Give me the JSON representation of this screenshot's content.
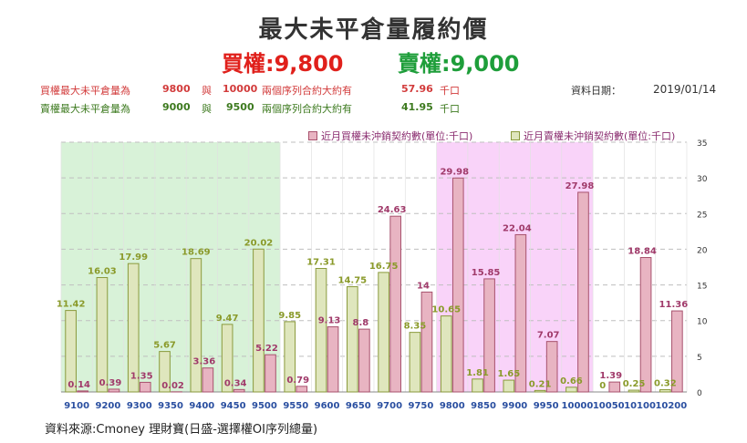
{
  "title": "最大未平倉量履約價",
  "put_headline": "買權:9,800",
  "call_headline": "賣權:9,000",
  "info": {
    "row1_label": "買權最大未平倉量為",
    "row1_strike1": "9800",
    "row1_mid": "與",
    "row1_strike2": "10000",
    "row1_text": "兩個序列合約大約有",
    "row1_value": "57.96",
    "row1_unit": "千口",
    "row2_label": "賣權最大未平倉量為",
    "row2_strike1": "9000",
    "row2_mid": "與",
    "row2_strike2": "9500",
    "row2_text": "兩個序列合約大約有",
    "row2_value": "41.95",
    "row2_unit": "千口",
    "date_label": "資料日期：",
    "date_value": "2019/01/14"
  },
  "source": "資料來源:Cmoney 理財寶(日盛-選擇權OI序列總量)",
  "colors": {
    "put": "#e8b4c2",
    "put_stroke": "#a8526e",
    "call": "#dfe6bd",
    "call_stroke": "#8a9a3c",
    "call_zone": "#d8f2d8",
    "put_zone": "#f9d3f9"
  },
  "chart_data": {
    "type": "bar",
    "categories": [
      "9100",
      "9200",
      "9300",
      "9350",
      "9400",
      "9450",
      "9500",
      "9550",
      "9600",
      "9650",
      "9700",
      "9750",
      "9800",
      "9850",
      "9900",
      "9950",
      "10000",
      "10050",
      "10100",
      "10200"
    ],
    "series": [
      {
        "name": "近月買權未沖銷契約數(單位:千口)",
        "values": [
          0.14,
          0.39,
          1.35,
          0.02,
          3.36,
          0.34,
          5.22,
          0.79,
          9.13,
          8.8,
          24.63,
          14,
          29.98,
          15.85,
          22.04,
          7.07,
          27.98,
          1.39,
          18.84,
          11.36
        ],
        "labels": [
          "0.14",
          "0.39",
          "1.35",
          "0.02",
          "3.36",
          "0.34",
          "5.22",
          "0.79",
          "9.13",
          "8.8",
          "24.63",
          "14",
          "29.98",
          "15.85",
          "22.04",
          "7.07",
          "27.98",
          "1.39",
          "18.84",
          "11.36"
        ]
      },
      {
        "name": "近月賣權未沖銷契約數(單位:千口)",
        "values": [
          11.42,
          16.03,
          17.99,
          5.67,
          18.69,
          9.47,
          20.02,
          9.85,
          17.31,
          14.75,
          16.75,
          8.35,
          10.65,
          1.81,
          1.65,
          0.21,
          0.66,
          0,
          0.25,
          0.32
        ],
        "labels": [
          "11.42",
          "16.03",
          "17.99",
          "5.67",
          "18.69",
          "9.47",
          "20.02",
          "9.85",
          "17.31",
          "14.75",
          "16.75",
          "8.35",
          "10.65",
          "1.81",
          "1.65",
          "0.21",
          "0.66",
          "0",
          "0.25",
          "0.32"
        ]
      }
    ],
    "ylim": [
      0,
      35
    ],
    "yticks": [
      "0",
      "5",
      "10",
      "15",
      "20",
      "25",
      "30",
      "35"
    ],
    "grid": true,
    "legend": "top"
  }
}
